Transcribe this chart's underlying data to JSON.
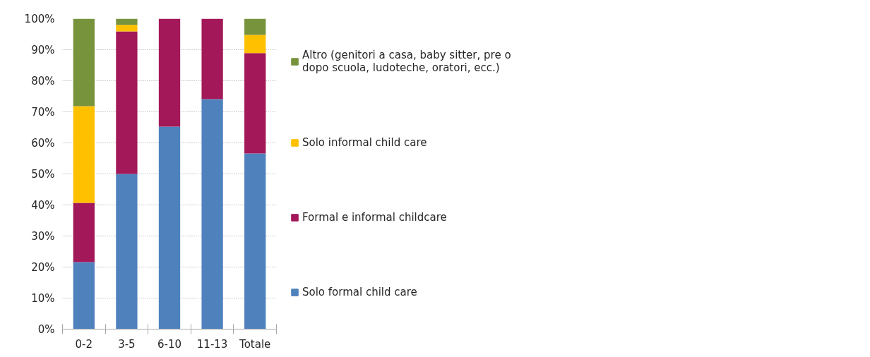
{
  "chart_data": {
    "type": "bar",
    "stacked": true,
    "categories": [
      "0-2",
      "3-5",
      "6-10",
      "11-13",
      "Totale"
    ],
    "series": [
      {
        "name": "Solo formal child care",
        "color": "#4f81bd",
        "values": [
          21.6,
          50,
          65.2,
          74.1,
          56.6
        ]
      },
      {
        "name": "Formal e informal childcare",
        "color": "#a31858",
        "values": [
          19.1,
          45.9,
          34.8,
          25.9,
          32.3
        ]
      },
      {
        "name": "Solo informal child care",
        "color": "#ffc000",
        "values": [
          31.1,
          2.1,
          0,
          0,
          5.9
        ]
      },
      {
        "name": "Altro (genitori a casa, baby sitter, pre o dopo scuola, ludoteche, oratori, ecc.)",
        "color": "#77933c",
        "values": [
          28.2,
          2.0,
          0,
          0,
          5.2
        ]
      }
    ],
    "ylim": [
      0,
      100
    ],
    "yticks": [
      {
        "value": 0,
        "label": "0%"
      },
      {
        "value": 10,
        "label": "10%"
      },
      {
        "value": 20,
        "label": "20%"
      },
      {
        "value": 30,
        "label": "30%"
      },
      {
        "value": 40,
        "label": "40%"
      },
      {
        "value": 50,
        "label": "50%"
      },
      {
        "value": 60,
        "label": "60%"
      },
      {
        "value": 70,
        "label": "70%"
      },
      {
        "value": 80,
        "label": "80%"
      },
      {
        "value": 90,
        "label": "90%"
      },
      {
        "value": 100,
        "label": "100%"
      }
    ],
    "grid": "y",
    "legend": "right"
  }
}
